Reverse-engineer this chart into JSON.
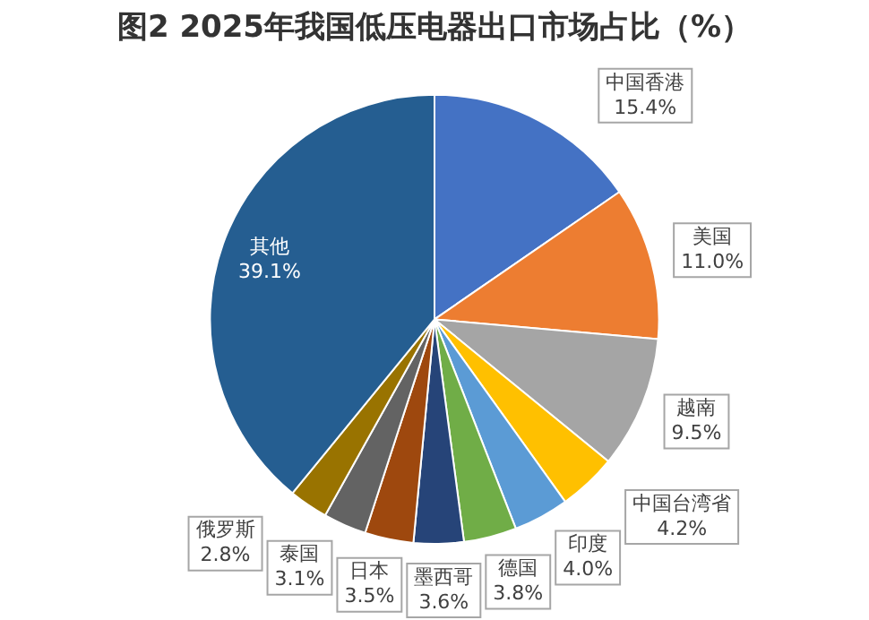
{
  "chart_data": {
    "type": "pie",
    "title": "图2 2025年我国低压电器出口市场占比（%）",
    "categories": [
      "中国香港",
      "美国",
      "越南",
      "中国台湾省",
      "印度",
      "德国",
      "墨西哥",
      "日本",
      "泰国",
      "俄罗斯",
      "其他"
    ],
    "values": [
      15.4,
      11.0,
      9.5,
      4.2,
      4.0,
      3.8,
      3.6,
      3.5,
      3.1,
      2.8,
      39.1
    ],
    "value_labels": [
      "15.4%",
      "11.0%",
      "9.5%",
      "4.2%",
      "4.0%",
      "3.8%",
      "3.6%",
      "3.5%",
      "3.1%",
      "2.8%",
      "39.1%"
    ],
    "colors": [
      "#4472c4",
      "#ed7d31",
      "#a5a5a5",
      "#ffc000",
      "#5b9bd5",
      "#70ad47",
      "#264478",
      "#9e480e",
      "#636363",
      "#997300",
      "#255e91"
    ],
    "legend": false
  }
}
